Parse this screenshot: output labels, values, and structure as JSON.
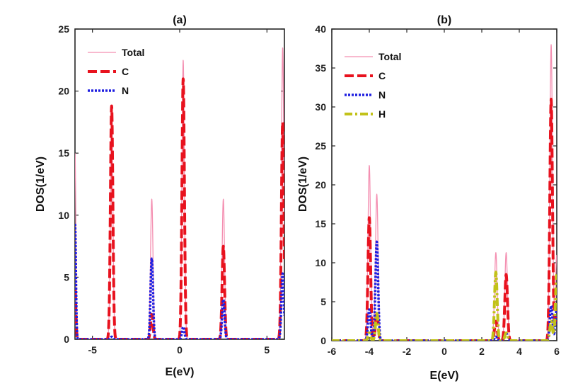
{
  "chart_data": [
    {
      "type": "line",
      "title": "(a)",
      "xlabel": "E(eV)",
      "ylabel": "DOS(1/eV)",
      "xlim": [
        -6,
        6
      ],
      "ylim": [
        0,
        25
      ],
      "xticks": [
        -5,
        0,
        5
      ],
      "yticks": [
        0,
        5,
        10,
        15,
        20,
        25
      ],
      "xtick_labels": [
        "-5",
        "0",
        "5"
      ],
      "ytick_labels": [
        "0",
        "5",
        "10",
        "15",
        "20",
        "25"
      ],
      "legend_position": "top-left",
      "series": [
        {
          "name": "Total",
          "color": "#f48fb1",
          "style": "solid",
          "peaks": [
            {
              "center": -6.0,
              "height": 15.0,
              "width": 0.05
            },
            {
              "center": -3.9,
              "height": 18.8,
              "width": 0.07
            },
            {
              "center": -1.6,
              "height": 11.3,
              "width": 0.07
            },
            {
              "center": 0.2,
              "height": 22.5,
              "width": 0.07
            },
            {
              "center": 2.5,
              "height": 11.3,
              "width": 0.07
            },
            {
              "center": 5.9,
              "height": 23.5,
              "width": 0.07
            }
          ]
        },
        {
          "name": "C",
          "color": "#e8121e",
          "style": "dashed",
          "peaks": [
            {
              "center": -6.0,
              "height": 4.0,
              "width": 0.05
            },
            {
              "center": -3.9,
              "height": 18.8,
              "width": 0.07
            },
            {
              "center": -1.6,
              "height": 2.0,
              "width": 0.07
            },
            {
              "center": 0.2,
              "height": 21.0,
              "width": 0.07
            },
            {
              "center": 2.5,
              "height": 7.5,
              "width": 0.07
            },
            {
              "center": 5.9,
              "height": 17.5,
              "width": 0.07
            }
          ]
        },
        {
          "name": "N",
          "color": "#1f1fe0",
          "style": "dotted",
          "peaks": [
            {
              "center": -6.0,
              "height": 9.3,
              "width": 0.05
            },
            {
              "center": -3.9,
              "height": 0.2,
              "width": 0.07
            },
            {
              "center": -1.6,
              "height": 6.5,
              "width": 0.07
            },
            {
              "center": 0.2,
              "height": 1.0,
              "width": 0.07
            },
            {
              "center": 2.5,
              "height": 3.2,
              "width": 0.07
            },
            {
              "center": 5.9,
              "height": 5.3,
              "width": 0.07
            }
          ]
        }
      ]
    },
    {
      "type": "line",
      "title": "(b)",
      "xlabel": "E(eV)",
      "ylabel": "DOS(1/eV)",
      "xlim": [
        -6,
        6
      ],
      "ylim": [
        0,
        40
      ],
      "xticks": [
        -6,
        -4,
        -2,
        0,
        2,
        4,
        6
      ],
      "yticks": [
        0,
        5,
        10,
        15,
        20,
        25,
        30,
        35,
        40
      ],
      "xtick_labels": [
        "-6",
        "-4",
        "-2",
        "0",
        "2",
        "4",
        "6"
      ],
      "ytick_labels": [
        "0",
        "5",
        "10",
        "15",
        "20",
        "25",
        "30",
        "35",
        "40"
      ],
      "legend_position": "top-left",
      "series": [
        {
          "name": "Total",
          "color": "#f48fb1",
          "style": "solid",
          "peaks": [
            {
              "center": -4.0,
              "height": 22.5,
              "width": 0.07
            },
            {
              "center": -3.6,
              "height": 18.8,
              "width": 0.07
            },
            {
              "center": 2.75,
              "height": 11.3,
              "width": 0.07
            },
            {
              "center": 3.3,
              "height": 11.3,
              "width": 0.07
            },
            {
              "center": 5.7,
              "height": 38.0,
              "width": 0.07
            },
            {
              "center": 6.0,
              "height": 11.0,
              "width": 0.07
            }
          ]
        },
        {
          "name": "C",
          "color": "#e8121e",
          "style": "dashed",
          "peaks": [
            {
              "center": -4.0,
              "height": 15.8,
              "width": 0.07
            },
            {
              "center": -3.6,
              "height": 3.5,
              "width": 0.07
            },
            {
              "center": 2.75,
              "height": 2.5,
              "width": 0.07
            },
            {
              "center": 3.3,
              "height": 8.5,
              "width": 0.07
            },
            {
              "center": 5.7,
              "height": 31.0,
              "width": 0.07
            },
            {
              "center": 6.0,
              "height": 4.0,
              "width": 0.07
            }
          ]
        },
        {
          "name": "N",
          "color": "#1f1fe0",
          "style": "dotted",
          "peaks": [
            {
              "center": -4.0,
              "height": 4.0,
              "width": 0.07
            },
            {
              "center": -3.6,
              "height": 12.7,
              "width": 0.07
            },
            {
              "center": 2.75,
              "height": 0.5,
              "width": 0.07
            },
            {
              "center": 3.3,
              "height": 1.0,
              "width": 0.07
            },
            {
              "center": 5.7,
              "height": 4.5,
              "width": 0.07
            },
            {
              "center": 6.0,
              "height": 4.0,
              "width": 0.07
            }
          ]
        },
        {
          "name": "H",
          "color": "#c2c21a",
          "style": "dash-dot",
          "peaks": [
            {
              "center": -4.0,
              "height": 1.0,
              "width": 0.07
            },
            {
              "center": -3.6,
              "height": 3.5,
              "width": 0.07
            },
            {
              "center": 2.75,
              "height": 8.8,
              "width": 0.07
            },
            {
              "center": 3.3,
              "height": 1.0,
              "width": 0.07
            },
            {
              "center": 5.7,
              "height": 2.5,
              "width": 0.07
            },
            {
              "center": 6.0,
              "height": 8.5,
              "width": 0.07
            }
          ]
        }
      ]
    }
  ]
}
